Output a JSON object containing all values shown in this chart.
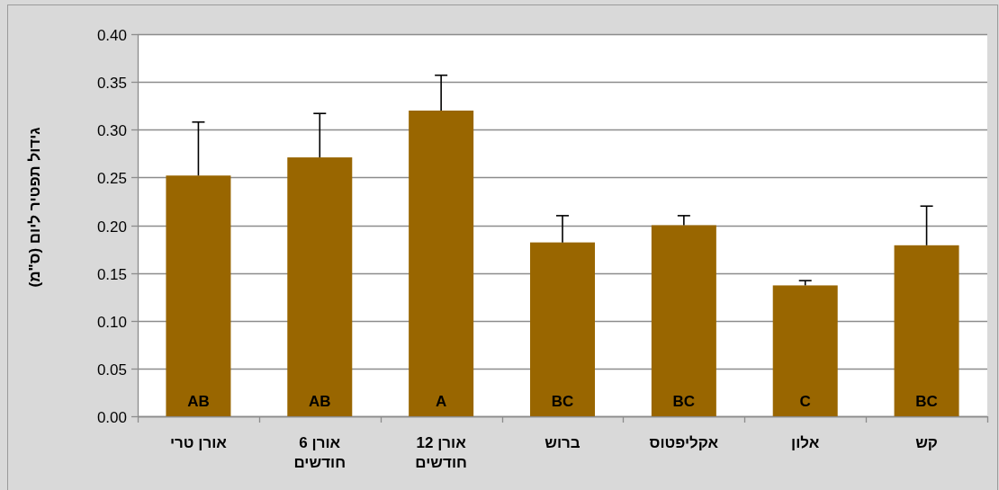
{
  "chart_data": {
    "type": "bar",
    "ylabel": "גידול תפטיר ליום (ס\"מ)",
    "categories": [
      "אורן טרי",
      "אורן 6 חודשים",
      "אורן 12 חודשים",
      "ברוש",
      "אקליפטוס",
      "אלון",
      "קש"
    ],
    "values": [
      0.252,
      0.271,
      0.32,
      0.182,
      0.2,
      0.137,
      0.179
    ],
    "errors": [
      [
        0.252,
        0.308
      ],
      [
        0.271,
        0.317
      ],
      [
        0.32,
        0.357
      ],
      [
        0.182,
        0.21
      ],
      [
        0.2,
        0.21
      ],
      [
        0.137,
        0.142
      ],
      [
        0.179,
        0.22
      ]
    ],
    "color": "#996600",
    "ylim": [
      0,
      0.4
    ],
    "yticks": [
      {
        "value": 0,
        "label": "0.00"
      },
      {
        "value": 0.05,
        "label": "0.05"
      },
      {
        "value": 0.1,
        "label": "0.10"
      },
      {
        "value": 0.15,
        "label": "0.15"
      },
      {
        "value": 0.2,
        "label": "0.20"
      },
      {
        "value": 0.25,
        "label": "0.25"
      },
      {
        "value": 0.3,
        "label": "0.30"
      },
      {
        "value": 0.35,
        "label": "0.35"
      },
      {
        "value": 0.4,
        "label": "0.40"
      }
    ],
    "grid": "y",
    "annotations": [
      "AB",
      "AB",
      "A",
      "BC",
      "BC",
      "C",
      "BC"
    ]
  }
}
